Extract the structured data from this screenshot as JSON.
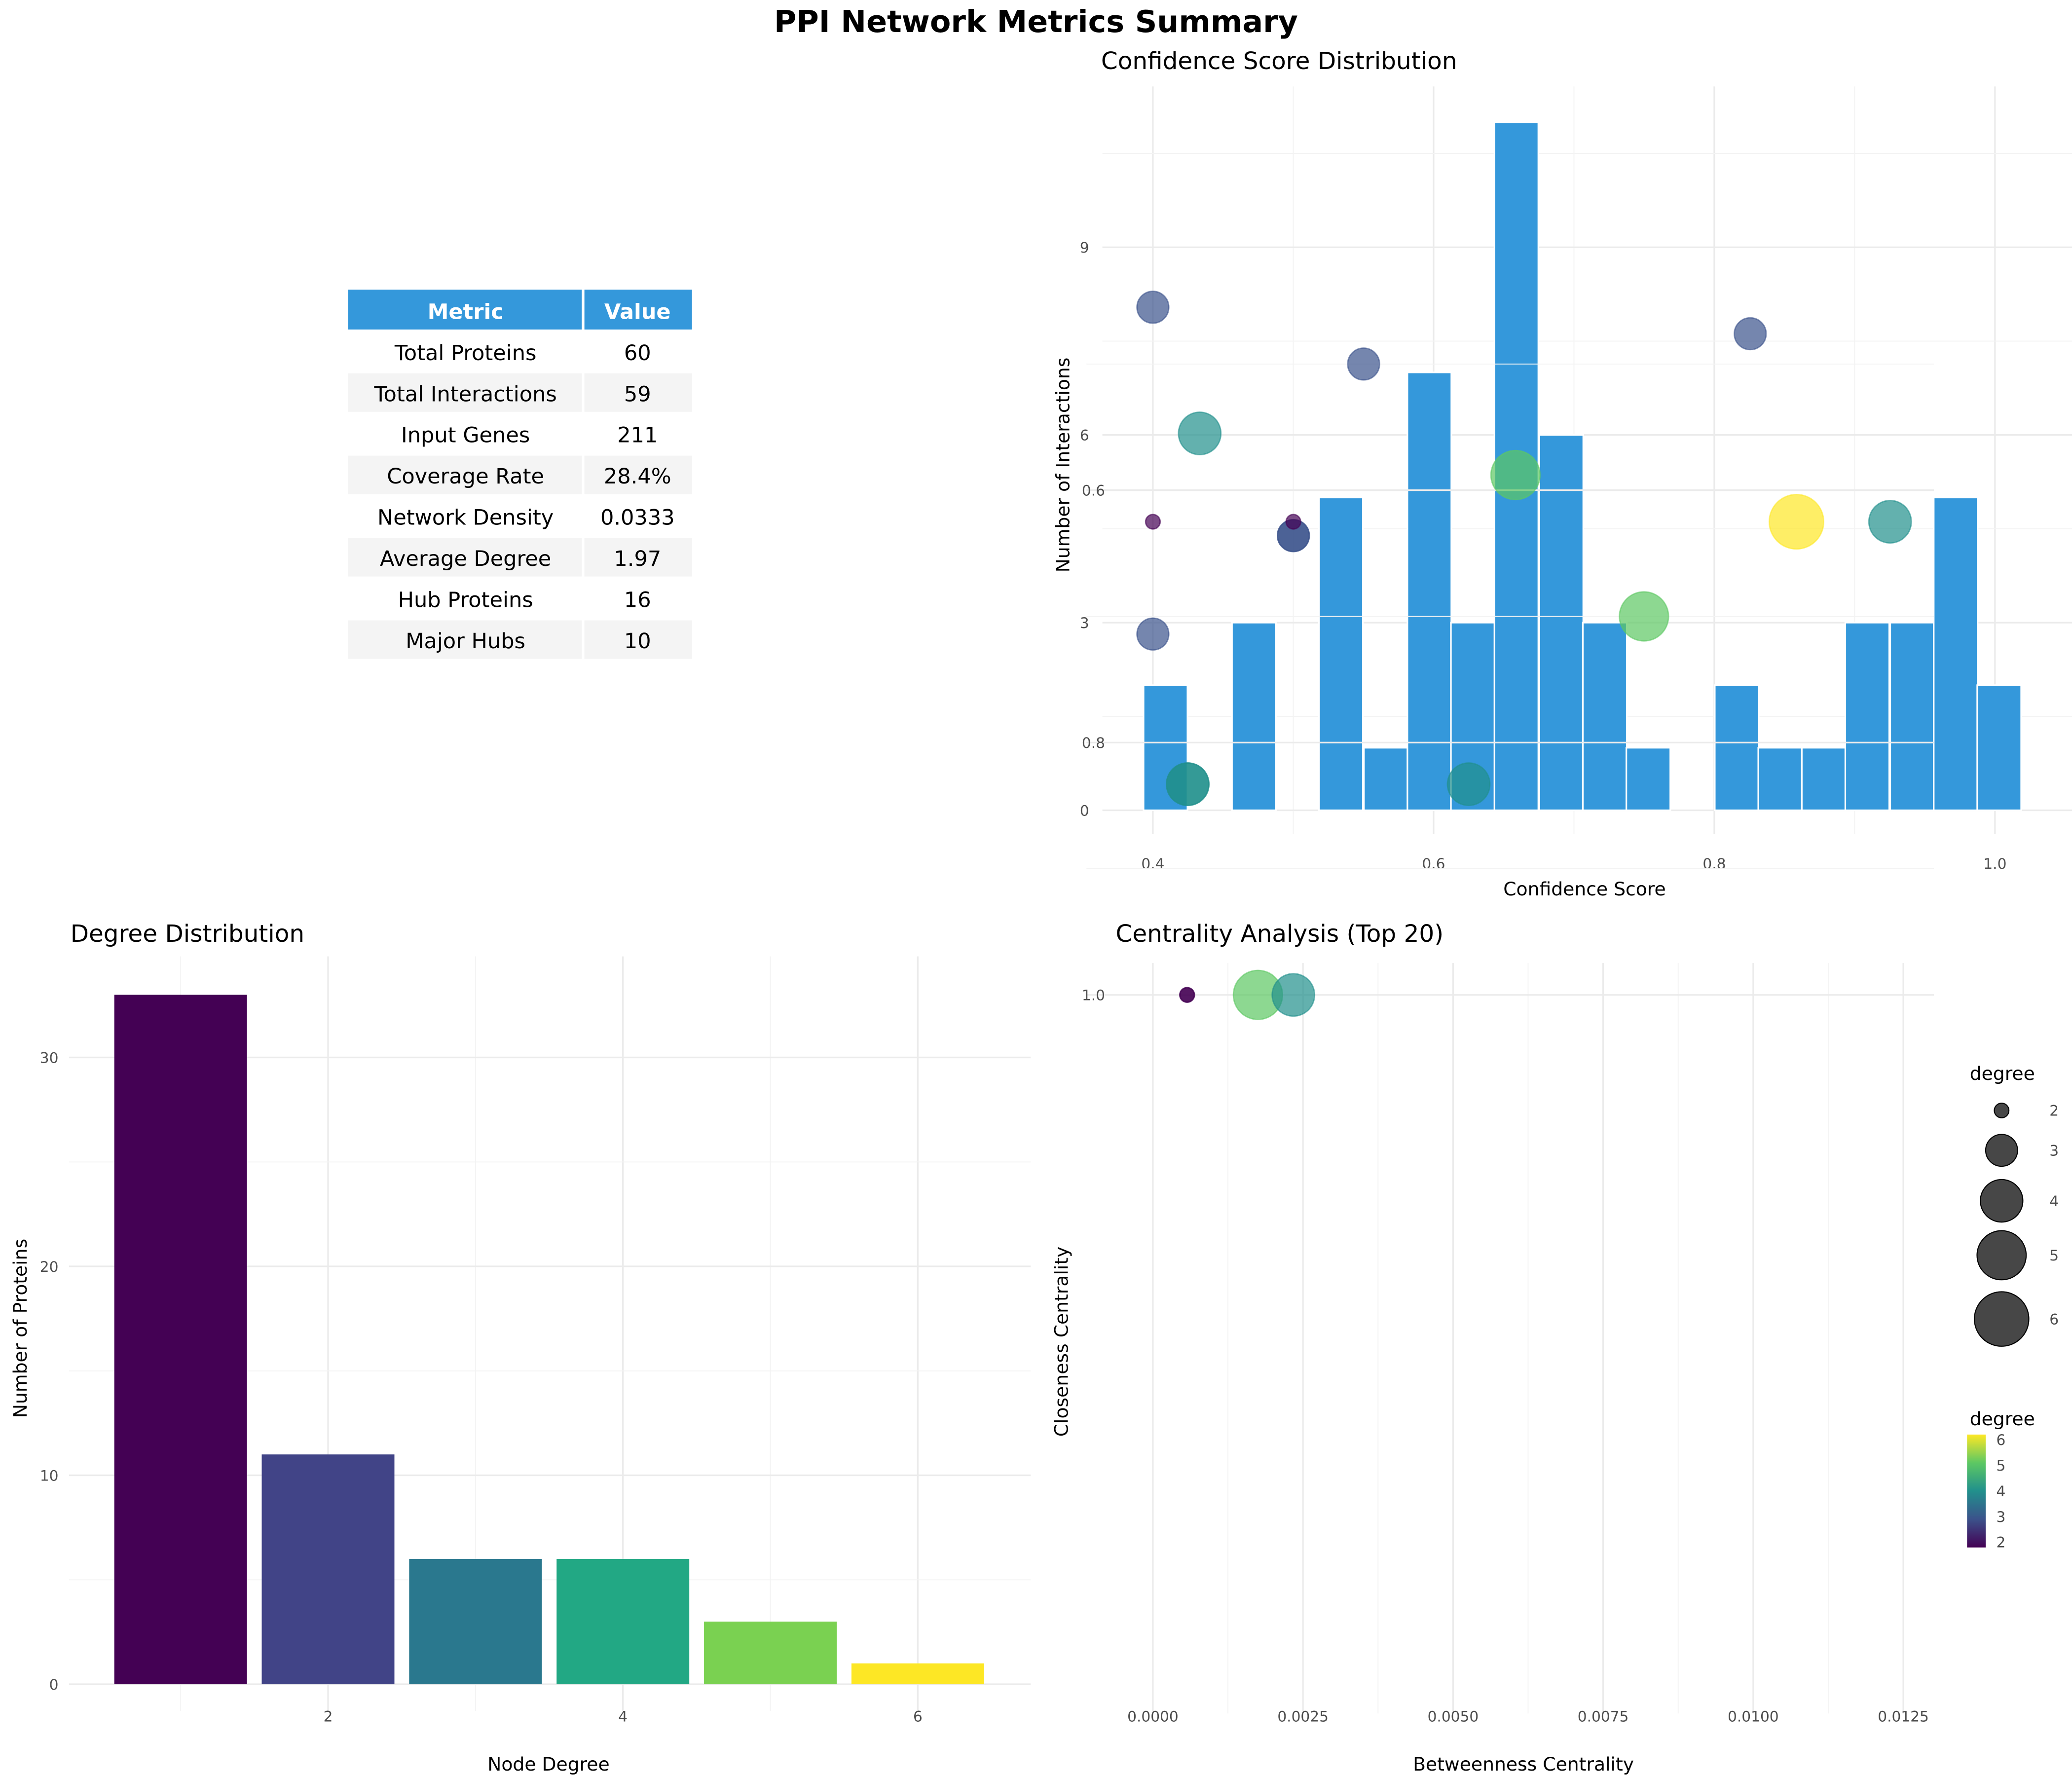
{
  "title": "PPI Network Metrics Summary",
  "table": {
    "headers": [
      "Metric",
      "Value"
    ],
    "header_color": "#3498db",
    "rows": [
      [
        "Total Proteins",
        "60"
      ],
      [
        "Total Interactions",
        "59"
      ],
      [
        "Input Genes",
        "211"
      ],
      [
        "Coverage Rate",
        "28.4%"
      ],
      [
        "Network Density",
        "0.0333"
      ],
      [
        "Average Degree",
        "1.97"
      ],
      [
        "Hub Proteins",
        "16"
      ],
      [
        "Major Hubs",
        "10"
      ]
    ]
  },
  "chart_data": [
    {
      "type": "bar",
      "title": "Confidence Score Distribution",
      "xlabel": "Confidence Score",
      "ylabel": "Number of Interactions",
      "color": "#3498db",
      "bin_width": 0.0313,
      "x": [
        0.409,
        0.44,
        0.472,
        0.503,
        0.534,
        0.566,
        0.597,
        0.628,
        0.659,
        0.691,
        0.722,
        0.753,
        0.784,
        0.816,
        0.847,
        0.878,
        0.909,
        0.941,
        0.972,
        1.003
      ],
      "values": [
        2,
        0,
        3,
        0,
        5,
        1,
        7,
        3,
        11,
        6,
        3,
        1,
        0,
        2,
        1,
        1,
        3,
        3,
        5,
        2
      ],
      "xticks": [
        "0.4",
        "0.6",
        "0.8",
        "1.0"
      ],
      "yticks": [
        "0",
        "3",
        "6",
        "9"
      ],
      "xlim": [
        0.365,
        1.06
      ],
      "ylim": [
        0,
        11.5
      ],
      "grid": true
    },
    {
      "type": "bar",
      "title": "Degree Distribution",
      "xlabel": "Node Degree",
      "ylabel": "Number of Proteins",
      "categories": [
        1,
        2,
        3,
        4,
        5,
        6
      ],
      "values": [
        33,
        11,
        6,
        6,
        3,
        1
      ],
      "colors": [
        "#440154",
        "#414487",
        "#2a788e",
        "#22a884",
        "#7ad151",
        "#fde725"
      ],
      "xticks": [
        "2",
        "4",
        "6"
      ],
      "yticks": [
        "0",
        "10",
        "20",
        "30"
      ],
      "xlim": [
        0.4,
        6.6
      ],
      "ylim": [
        0,
        34.6
      ],
      "grid": true
    },
    {
      "type": "scatter",
      "title": "Centrality Analysis (Top 20)",
      "xlabel": "Betweenness Centrality",
      "ylabel": "Closeness Centrality",
      "xticks": [
        "0.0000",
        "0.0025",
        "0.0050",
        "0.0075",
        "0.0100",
        "0.0125"
      ],
      "yticks": [
        "0.6",
        "0.8",
        "1.0"
      ],
      "xlim": [
        -0.0011,
        0.0129
      ],
      "ylim": [
        0.443,
        1.027
      ],
      "points": [
        {
          "x": 0.00057,
          "y": 1.0,
          "degree": 2
        },
        {
          "x": 0.00057,
          "y": 1.0,
          "degree": 2
        },
        {
          "x": 0.00175,
          "y": 1.0,
          "degree": 5
        },
        {
          "x": 0.00234,
          "y": 1.0,
          "degree": 4
        },
        {
          "x": 0.00058,
          "y": 0.833,
          "degree": 4
        },
        {
          "x": 0.00058,
          "y": 0.833,
          "degree": 4
        },
        {
          "x": 0.00526,
          "y": 0.833,
          "degree": 4
        },
        {
          "x": 0.0,
          "y": 0.714,
          "degree": 3
        },
        {
          "x": 0.00818,
          "y": 0.7,
          "degree": 5
        },
        {
          "x": 0.00234,
          "y": 0.636,
          "degree": 3
        },
        {
          "x": 0.00234,
          "y": 0.636,
          "degree": 3
        },
        {
          "x": 0.0,
          "y": 0.625,
          "degree": 2
        },
        {
          "x": 0.00234,
          "y": 0.625,
          "degree": 2
        },
        {
          "x": 0.01072,
          "y": 0.625,
          "degree": 6
        },
        {
          "x": 0.01228,
          "y": 0.625,
          "degree": 4
        },
        {
          "x": 0.00604,
          "y": 0.588,
          "degree": 5
        },
        {
          "x": 0.00078,
          "y": 0.555,
          "degree": 4
        },
        {
          "x": 0.00351,
          "y": 0.5,
          "degree": 3
        },
        {
          "x": 0.00995,
          "y": 0.476,
          "degree": 3
        },
        {
          "x": 0.0,
          "y": 0.455,
          "degree": 3
        }
      ],
      "degree_colors": {
        "2": "#440154",
        "3": "#3b528b",
        "4": "#21908c",
        "5": "#5dc863",
        "6": "#fde725"
      },
      "legend_size": {
        "title": "degree",
        "labels": [
          "2",
          "3",
          "4",
          "5",
          "6"
        ]
      },
      "legend_color": {
        "title": "degree",
        "labels": [
          "2",
          "3",
          "4",
          "5",
          "6"
        ]
      },
      "legend_position": "right",
      "grid": true
    }
  ]
}
